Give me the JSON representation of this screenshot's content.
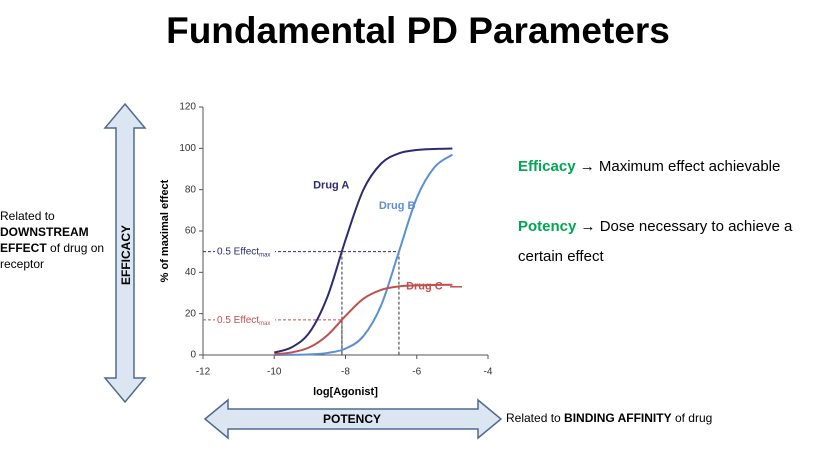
{
  "slide": {
    "title": "Fundamental PD Parameters",
    "left_note": {
      "lead": "Related to",
      "bold": "DOWNSTREAM EFFECT",
      "tail": "of drug on receptor"
    },
    "efficacy_arrow": "EFFICACY",
    "potency_arrow": "POTENCY",
    "potency_note": {
      "lead": "Related to",
      "bold": "BINDING AFFINITY",
      "tail": "of drug"
    },
    "definitions": [
      {
        "term": "Efficacy",
        "text": "→ Maximum effect achievable"
      },
      {
        "term": "Potency",
        "text": "→ Dose necessary to achieve a certain effect"
      }
    ]
  },
  "chart_data": {
    "type": "line",
    "x_label": "log[Agonist]",
    "y_label": "% of maximal effect",
    "x": [
      -10,
      -9.5,
      -9,
      -8.5,
      -8,
      -7.5,
      -7,
      -6.5,
      -6,
      -5.5,
      -5
    ],
    "series": [
      {
        "name": "Drug A",
        "color": "#2e2a6e",
        "values": [
          1.2,
          3.8,
          11.2,
          28.5,
          55.7,
          79.9,
          92.6,
          97.6,
          99.2,
          99.7,
          99.9
        ]
      },
      {
        "name": "Drug B",
        "color": "#5b8fd6",
        "values": [
          0.03,
          0.1,
          0.3,
          1.0,
          3.1,
          9.1,
          24.0,
          50,
          76.0,
          90.9,
          96.9
        ]
      },
      {
        "name": "Drug C",
        "color": "#c0504d",
        "values": [
          0.4,
          1.3,
          3.8,
          9.7,
          18.9,
          27.2,
          31.5,
          33.2,
          33.7,
          33.9,
          34.0
        ]
      }
    ],
    "reference_lines": [
      {
        "y": 50,
        "x": [
          -8.1,
          -6.5
        ],
        "label": "0.5 Effect",
        "subscript": "max",
        "color": "#2e2a6e"
      },
      {
        "y": 17,
        "x": [
          -8.1
        ],
        "label": "0.5 Effect",
        "subscript": "max",
        "color": "#c0504d"
      }
    ],
    "xlim": [
      -12,
      -4
    ],
    "xticks": [
      -12,
      -10,
      -8,
      -6,
      -4
    ],
    "ylim": [
      0,
      120
    ],
    "yticks": [
      0,
      20,
      40,
      60,
      80,
      100,
      120
    ]
  }
}
